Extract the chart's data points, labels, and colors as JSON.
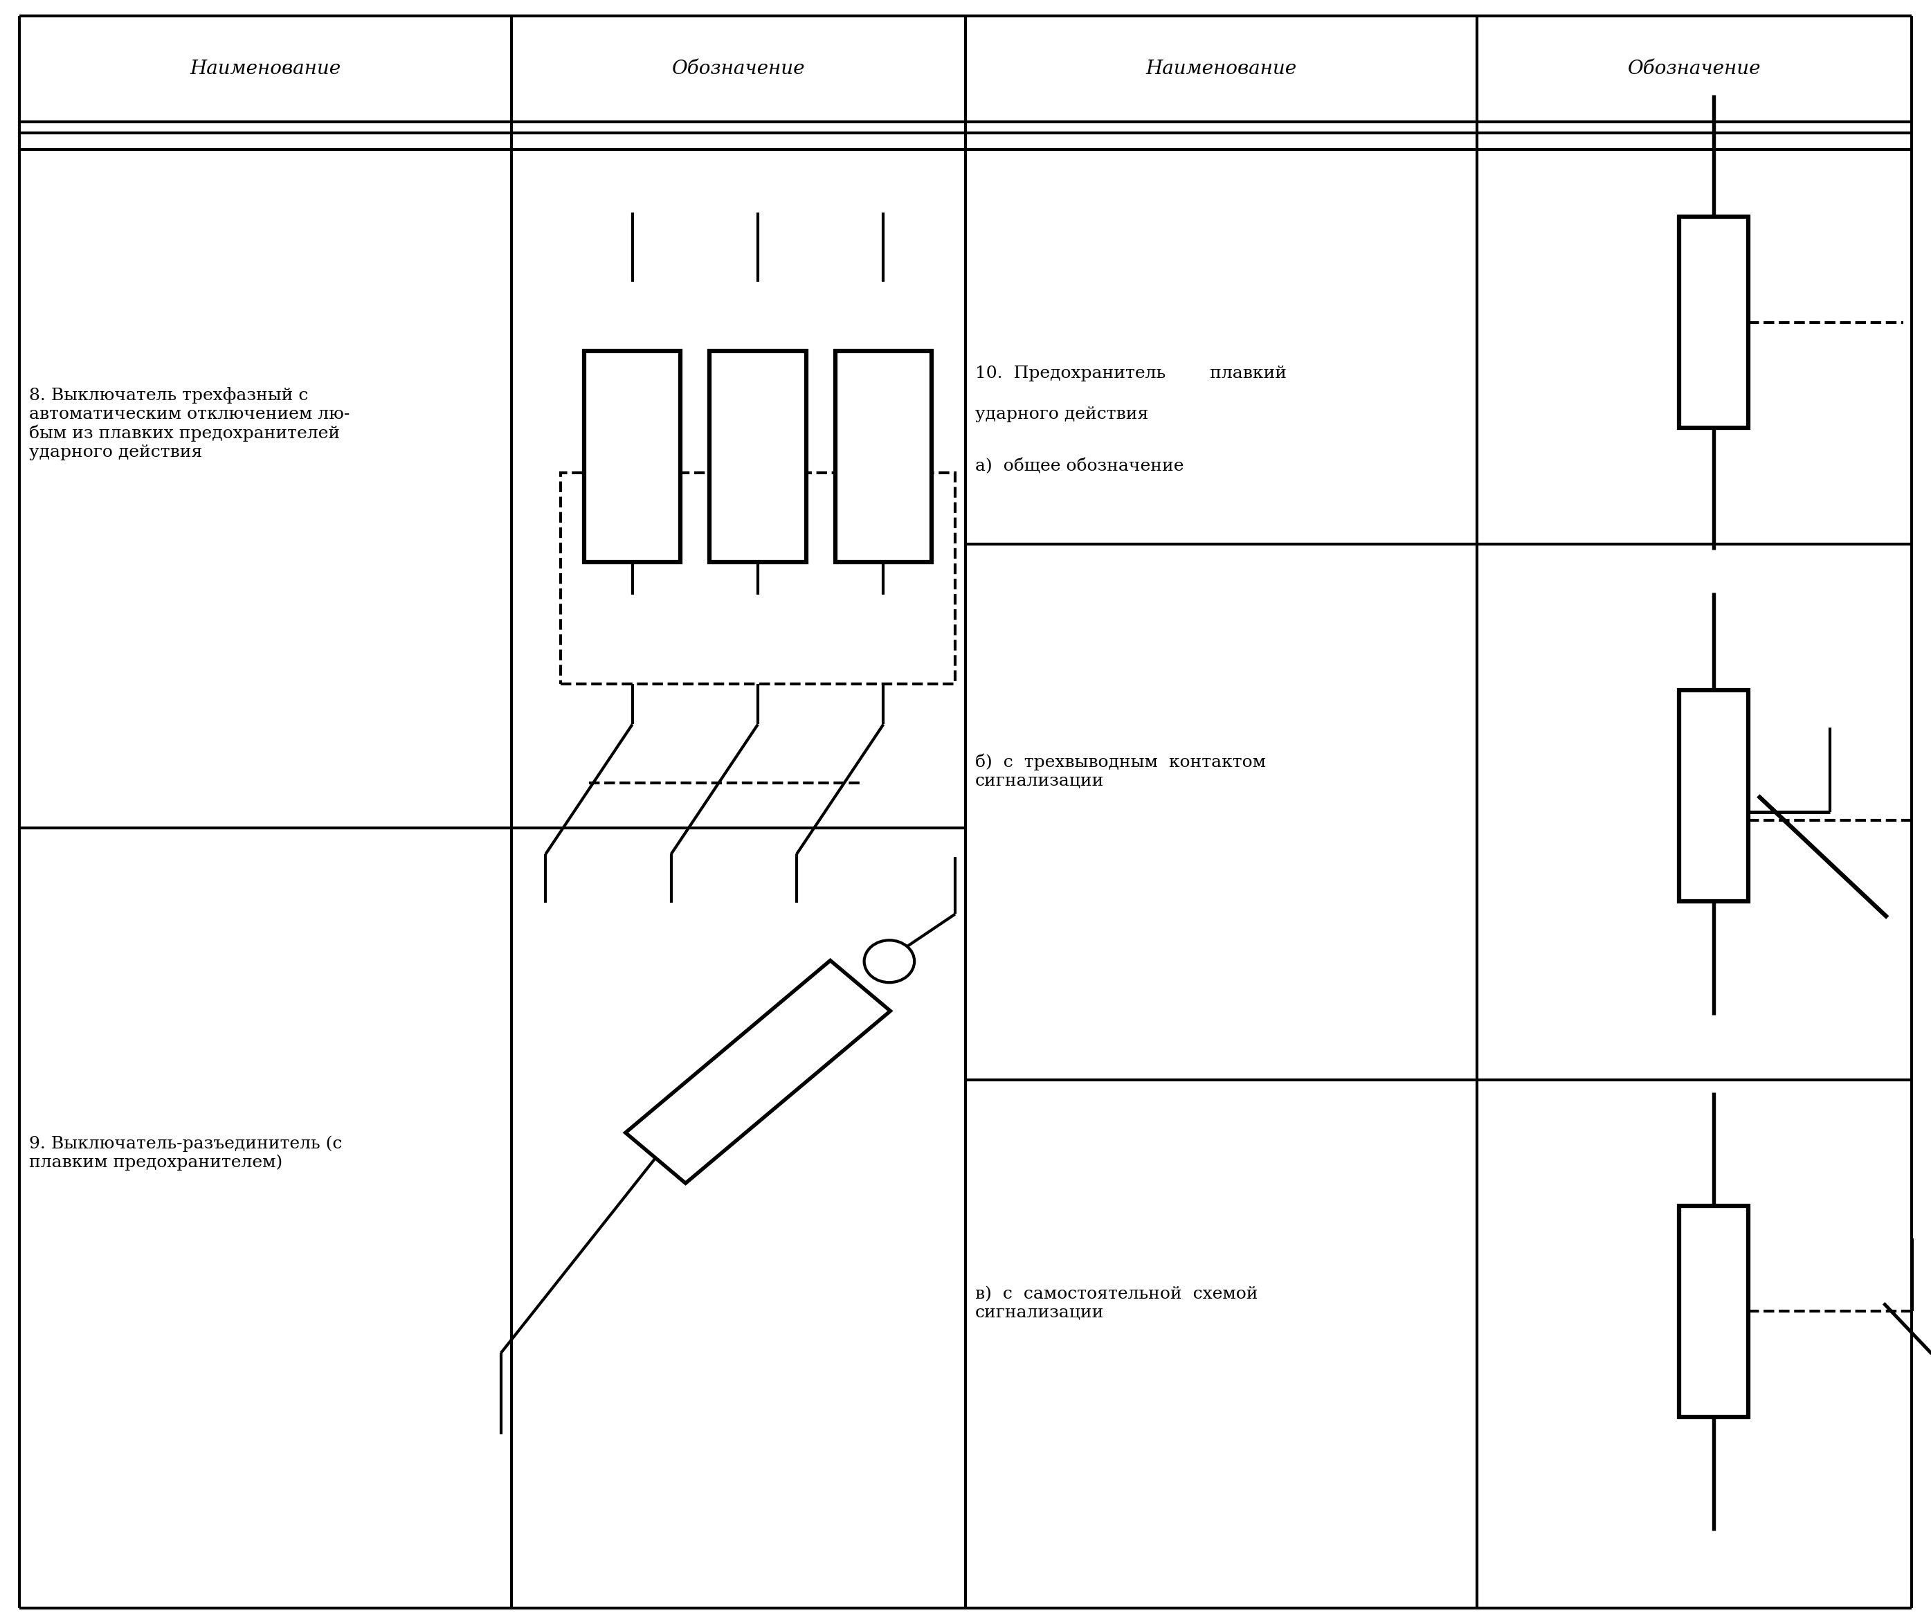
{
  "background_color": "#ffffff",
  "header_texts": [
    "Наименование",
    "Обозначение",
    "Наименование",
    "Обозначение"
  ],
  "row8_text": "8. Выключатель трехфазный с\nавтоматическим отключением лю-\nбым из плавких предохранителей\nударного действия",
  "row9_text": "9. Выключатель-разъединитель (с\nплавким предохранителем)",
  "row10a_line1": "10.  Предохранитель        плавкий",
  "row10a_line2": "ударного действия",
  "row10a_line3": "а)  общее обозначение",
  "row10b_text": "б)  с  трехвыводным  контактом\nсигнализации",
  "row10c_text": "в)  с  самостоятельной  схемой\nсигнализации",
  "font_size_header": 20,
  "font_size_body": 18,
  "lw": 3.0
}
